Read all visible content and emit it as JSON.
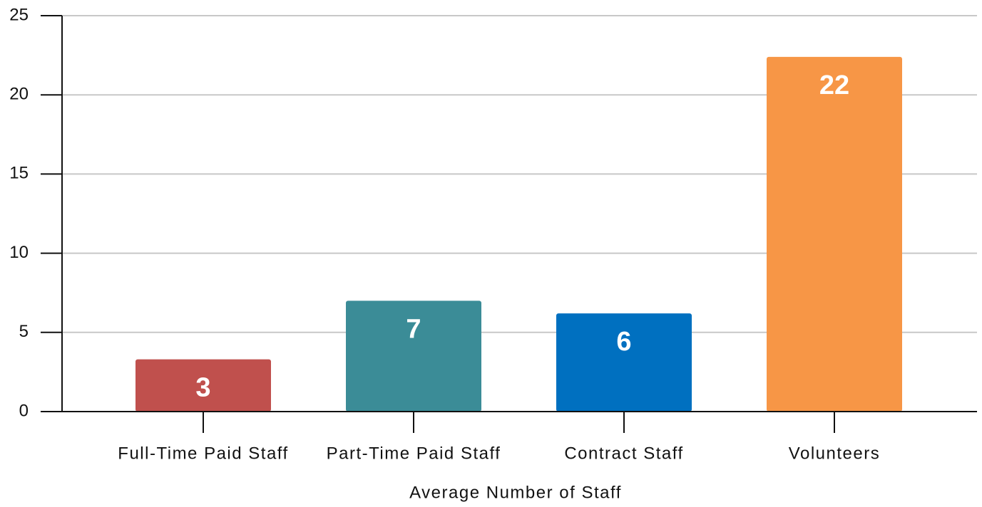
{
  "chart_data": {
    "type": "bar",
    "x_label": "Average Number of Staff",
    "categories": [
      "Full-Time Paid Staff",
      "Part-Time Paid Staff",
      "Contract Staff",
      "Volunteers"
    ],
    "values": [
      3.3,
      7.0,
      6.2,
      22.4
    ],
    "value_labels": [
      "3",
      "7",
      "6",
      "22"
    ],
    "colors": [
      "#c0504d",
      "#3b8c97",
      "#0070c0",
      "#f79646"
    ],
    "ylim": [
      0,
      25
    ],
    "yticks": [
      0,
      5,
      10,
      15,
      20,
      25
    ],
    "grid": true
  }
}
